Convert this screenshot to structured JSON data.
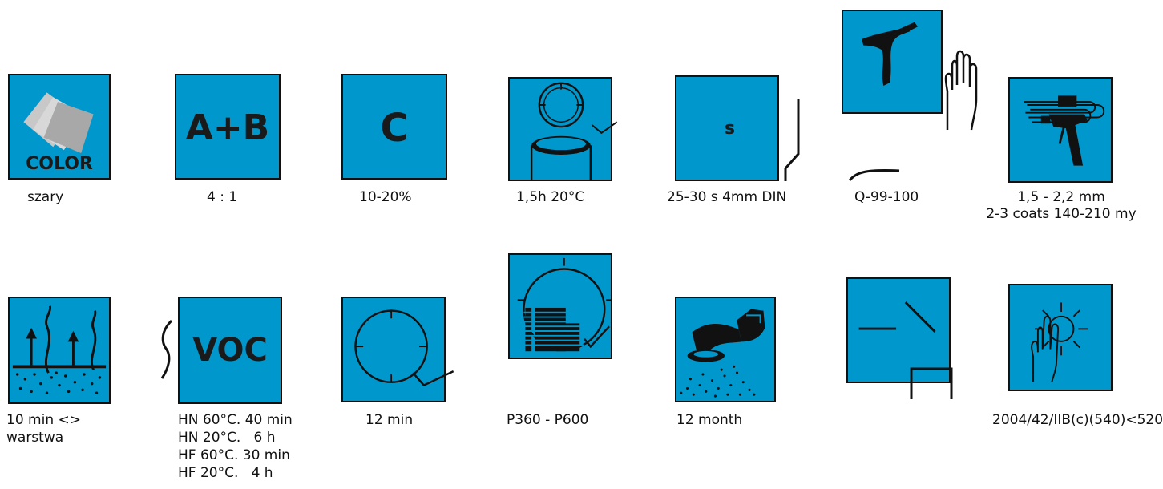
{
  "colors": {
    "tile_fill": "#0098cc",
    "outline": "#111111"
  },
  "row1": [
    {
      "icon": "color-swatch-icon",
      "text": "COLOR",
      "caption": "szary"
    },
    {
      "icon": "mix-ratio-icon",
      "text": "A+B",
      "caption": "4 : 1"
    },
    {
      "icon": "thinner-icon",
      "text": "C",
      "caption": "10-20%"
    },
    {
      "icon": "pot-life-icon",
      "caption": "1,5h 20°C"
    },
    {
      "icon": "viscosity-cup-icon",
      "text": "s",
      "caption": "25-30 s 4mm DIN"
    },
    {
      "icon": "hardener-icon",
      "caption": "Q-99-100"
    },
    {
      "icon": "spray-gun-icon",
      "caption_lines": [
        "1,5 - 2,2 mm",
        "2-3 coats 140-210 my"
      ]
    }
  ],
  "row2": [
    {
      "icon": "flash-off-icon",
      "caption_lines": [
        "10 min <>",
        "warstwa"
      ]
    },
    {
      "icon": "voc-icon",
      "text": "VOC",
      "caption_lines": [
        "HN 60°C. 40 min",
        "HN 20°C.   6 h",
        "HF 60°C. 30 min",
        "HF 20°C.   4 h"
      ]
    },
    {
      "icon": "drying-time-icon",
      "caption": "12 min"
    },
    {
      "icon": "infrared-drying-icon",
      "caption": "P360 - P600"
    },
    {
      "icon": "sanding-icon",
      "caption": "12 month"
    },
    {
      "icon": "storage-icon",
      "caption": ""
    },
    {
      "icon": "protection-icon",
      "caption": "2004/42/IIB(c)(540)<520"
    }
  ]
}
